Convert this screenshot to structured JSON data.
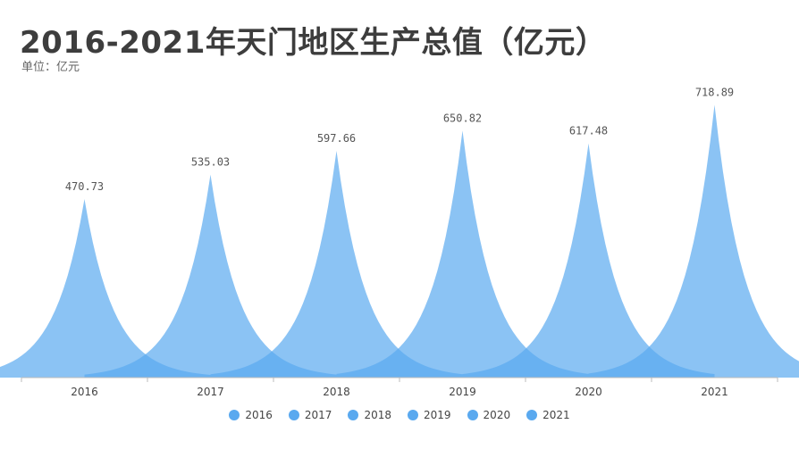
{
  "chart_data": {
    "type": "area",
    "title": "2016-2021年天门地区生产总值（亿元）",
    "subtitle": "单位：亿元",
    "categories": [
      "2016",
      "2017",
      "2018",
      "2019",
      "2020",
      "2021"
    ],
    "values": [
      470.73,
      535.03,
      597.66,
      650.82,
      617.48,
      718.89
    ],
    "value_labels": [
      "470.73",
      "535.03",
      "597.66",
      "650.82",
      "617.48",
      "718.89"
    ],
    "ylim": [
      0,
      760
    ],
    "grid": false,
    "legend_position": "bottom",
    "series_color": "#5aa9ef"
  },
  "legend": {
    "items": [
      {
        "label": "2016"
      },
      {
        "label": "2017"
      },
      {
        "label": "2018"
      },
      {
        "label": "2019"
      },
      {
        "label": "2020"
      },
      {
        "label": "2021"
      }
    ]
  }
}
